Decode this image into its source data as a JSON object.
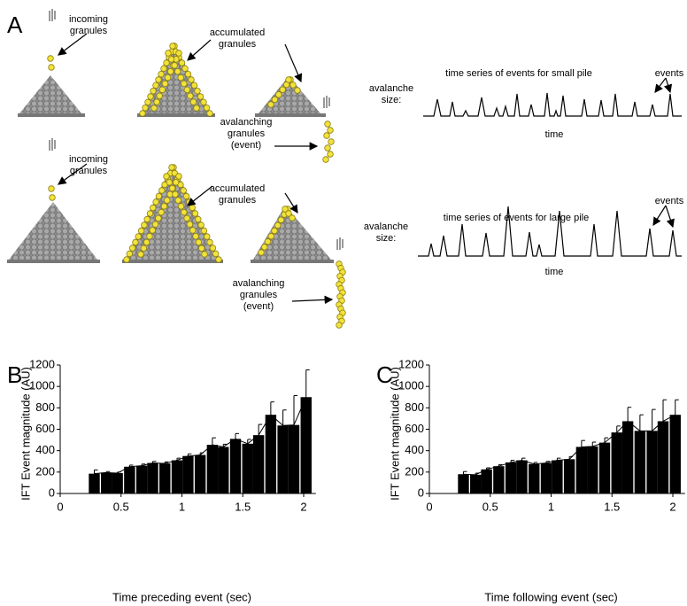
{
  "panel_a": {
    "letter": "A",
    "top": {
      "incoming": [
        "incoming",
        "granules"
      ],
      "accumulated": [
        "accumulated",
        "granules"
      ],
      "avalanching": [
        "avalanching",
        "granules",
        "(event)"
      ],
      "series_title": "time series of events for small pile",
      "size_label": [
        "avalanche",
        "size:"
      ],
      "time": "time",
      "events": "events"
    },
    "bottom": {
      "incoming": [
        "incoming",
        "granules"
      ],
      "accumulated": [
        "accumulated",
        "granules"
      ],
      "avalanching": [
        "avalanching",
        "granules",
        "(event)"
      ],
      "series_title": "time series of events for large pile",
      "size_label": [
        "avalanche",
        "size:"
      ],
      "time": "time",
      "events": "events"
    }
  },
  "chart_data": [
    {
      "type": "bar",
      "panel": "B",
      "xlabel": "Time preceding event (sec)",
      "ylabel": "IFT Event magnitude (AU)",
      "x": [
        0.28,
        0.38,
        0.47,
        0.57,
        0.67,
        0.76,
        0.86,
        0.96,
        1.05,
        1.15,
        1.25,
        1.34,
        1.44,
        1.54,
        1.63,
        1.73,
        1.83,
        1.92,
        2.02
      ],
      "values": [
        185,
        195,
        190,
        250,
        260,
        285,
        280,
        310,
        350,
        360,
        455,
        435,
        510,
        465,
        545,
        735,
        635,
        640,
        900
      ],
      "errors": [
        35,
        10,
        10,
        15,
        15,
        15,
        15,
        20,
        20,
        20,
        65,
        25,
        50,
        40,
        100,
        120,
        145,
        275,
        255
      ],
      "color": "#000000",
      "xlim": [
        0,
        2.1
      ],
      "ylim": [
        0,
        1200
      ],
      "xticks": [
        0,
        0.5,
        1,
        1.5,
        2
      ],
      "yticks": [
        0,
        200,
        400,
        600,
        800,
        1000,
        1200
      ]
    },
    {
      "type": "bar",
      "panel": "C",
      "xlabel": "Time following event (sec)",
      "ylabel": "IFT Event magnitude (AU)",
      "x": [
        0.28,
        0.38,
        0.47,
        0.57,
        0.67,
        0.76,
        0.86,
        0.96,
        1.05,
        1.15,
        1.25,
        1.34,
        1.44,
        1.54,
        1.63,
        1.73,
        1.83,
        1.92,
        2.02
      ],
      "values": [
        180,
        175,
        225,
        255,
        290,
        310,
        275,
        285,
        310,
        320,
        435,
        440,
        475,
        570,
        675,
        585,
        585,
        675,
        735
      ],
      "errors": [
        25,
        15,
        15,
        15,
        20,
        20,
        15,
        15,
        20,
        25,
        60,
        40,
        45,
        60,
        130,
        150,
        200,
        200,
        140
      ],
      "color": "#000000",
      "xlim": [
        0,
        2.1
      ],
      "ylim": [
        0,
        1200
      ],
      "xticks": [
        0,
        0.5,
        1,
        1.5,
        2
      ],
      "yticks": [
        0,
        200,
        400,
        600,
        800,
        1000,
        1200
      ]
    }
  ]
}
